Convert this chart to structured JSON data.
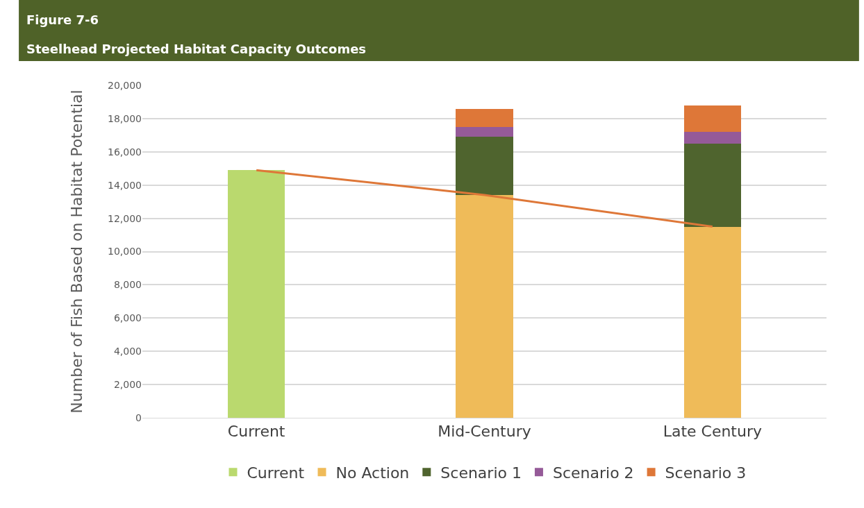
{
  "chart_data": {
    "type": "bar",
    "title": "Figure 7-6",
    "subtitle": "Steelhead Projected Habitat Capacity Outcomes",
    "ylabel": "Number of Fish Based on Habitat Potential",
    "categories": [
      "Current",
      "Mid-Century",
      "Late Century"
    ],
    "stacked": true,
    "series": [
      {
        "name": "Current",
        "color": "#bad96e",
        "values": [
          14900,
          null,
          null
        ]
      },
      {
        "name": "No Action",
        "color": "#efbb59",
        "values": [
          null,
          13400,
          11500
        ]
      },
      {
        "name": "Scenario 1",
        "color": "#4f642e",
        "values": [
          null,
          3500,
          5000
        ]
      },
      {
        "name": "Scenario 2",
        "color": "#955a98",
        "values": [
          null,
          600,
          700
        ]
      },
      {
        "name": "Scenario 3",
        "color": "#de7738",
        "values": [
          null,
          1100,
          1600
        ]
      },
      {
        "type": "line",
        "color": "#de7738",
        "values": [
          14900,
          13400,
          11500
        ]
      }
    ],
    "ylim": [
      0,
      20000
    ],
    "yticks": [
      {
        "value": 0,
        "label": "0"
      },
      {
        "value": 2000,
        "label": "2,000"
      },
      {
        "value": 4000,
        "label": "4,000"
      },
      {
        "value": 6000,
        "label": "6,000"
      },
      {
        "value": 8000,
        "label": "8,000"
      },
      {
        "value": 10000,
        "label": "10,000"
      },
      {
        "value": 12000,
        "label": "12,000"
      },
      {
        "value": 14000,
        "label": "14,000"
      },
      {
        "value": 16000,
        "label": "16,000"
      },
      {
        "value": 18000,
        "label": "18,000"
      },
      {
        "value": 20000,
        "label": "20,000"
      }
    ],
    "grid": "y",
    "legend": "bottom"
  }
}
